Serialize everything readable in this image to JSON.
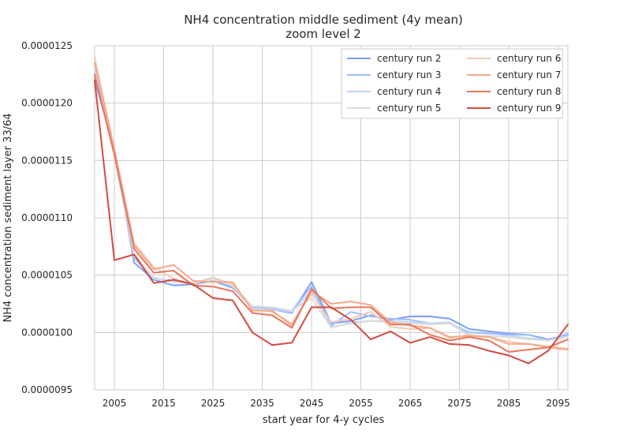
{
  "chart_data": {
    "type": "line",
    "title": "NH4 concentration middle sediment (4y mean)",
    "subtitle": "zoom level 2",
    "xlabel": "start year for 4-y cycles",
    "ylabel": "NH4 concentration sediment layer 33/64",
    "xlim": [
      2001,
      2097
    ],
    "ylim": [
      9.5e-06,
      1.25e-05
    ],
    "xticks": [
      "2005",
      "2015",
      "2025",
      "2035",
      "2045",
      "2055",
      "2065",
      "2075",
      "2085",
      "2095"
    ],
    "yticks": [
      "0.0000095",
      "0.0000100",
      "0.0000105",
      "0.0000110",
      "0.0000115",
      "0.0000120",
      "0.0000125"
    ],
    "grid": true,
    "legend_position": "top-right",
    "x": [
      2001,
      2005,
      2009,
      2013,
      2017,
      2021,
      2025,
      2029,
      2033,
      2037,
      2041,
      2045,
      2049,
      2053,
      2057,
      2061,
      2065,
      2069,
      2073,
      2077,
      2081,
      2085,
      2089,
      2093,
      2097
    ],
    "series": [
      {
        "name": "century run 2",
        "color": "#7b9ff9",
        "values": [
          1.22e-05,
          1.16e-05,
          1.061e-05,
          1.046e-05,
          1.041e-05,
          1.042e-05,
          1.045e-05,
          1.039e-05,
          1.022e-05,
          1.02e-05,
          1.017e-05,
          1.044e-05,
          1.008e-05,
          1.01e-05,
          1.015e-05,
          1.011e-05,
          1.014e-05,
          1.014e-05,
          1.012e-05,
          1.003e-05,
          1.001e-05,
          9.99e-06,
          9.98e-06,
          9.94e-06,
          9.98e-06
        ]
      },
      {
        "name": "century run 3",
        "color": "#9ebeff",
        "values": [
          1.225e-05,
          1.155e-05,
          1.065e-05,
          1.047e-05,
          1.045e-05,
          1.043e-05,
          1.046e-05,
          1.04e-05,
          1.022e-05,
          1.021e-05,
          1.019e-05,
          1.04e-05,
          1.006e-05,
          1.018e-05,
          1.014e-05,
          1.012e-05,
          1.011e-05,
          1.008e-05,
          1.008e-05,
          1e-05,
          9.99e-06,
          9.98e-06,
          9.98e-06,
          9.93e-06,
          9.99e-06
        ]
      },
      {
        "name": "century run 4",
        "color": "#c0d4f5",
        "values": [
          1.23e-05,
          1.155e-05,
          1.066e-05,
          1.048e-05,
          1.044e-05,
          1.043e-05,
          1.048e-05,
          1.04e-05,
          1.021e-05,
          1.02e-05,
          1.018e-05,
          1.036e-05,
          1.005e-05,
          1.008e-05,
          1.01e-05,
          1.01e-05,
          1.009e-05,
          1.008e-05,
          1.009e-05,
          9.98e-06,
          9.96e-06,
          9.97e-06,
          9.95e-06,
          9.93e-06,
          9.97e-06
        ]
      },
      {
        "name": "century run 5",
        "color": "#dddcdc",
        "values": [
          1.235e-05,
          1.16e-05,
          1.068e-05,
          1.047e-05,
          1.044e-05,
          1.043e-05,
          1.046e-05,
          1.041e-05,
          1.023e-05,
          1.022e-05,
          1.019e-05,
          1.03e-05,
          1.004e-05,
          1.009e-05,
          1.01e-05,
          1.009e-05,
          1.008e-05,
          1.007e-05,
          1.008e-05,
          9.97e-06,
          9.97e-06,
          9.96e-06,
          9.94e-06,
          9.93e-06,
          9.96e-06
        ]
      },
      {
        "name": "century run 6",
        "color": "#f2cbb7",
        "values": [
          1.24e-05,
          1.16e-05,
          1.078e-05,
          1.057e-05,
          1.047e-05,
          1.042e-05,
          1.048e-05,
          1.042e-05,
          1.02e-05,
          1.018e-05,
          1.008e-05,
          1.034e-05,
          1.009e-05,
          1.012e-05,
          1.018e-05,
          1.005e-05,
          1.003e-05,
          1.004e-05,
          9.95e-06,
          9.98e-06,
          9.96e-06,
          9.92e-06,
          9.9e-06,
          9.88e-06,
          9.86e-06
        ]
      },
      {
        "name": "century run 7",
        "color": "#f7a889",
        "values": [
          1.235e-05,
          1.16e-05,
          1.076e-05,
          1.055e-05,
          1.059e-05,
          1.045e-05,
          1.044e-05,
          1.044e-05,
          1.019e-05,
          1.019e-05,
          1.006e-05,
          1.036e-05,
          1.025e-05,
          1.027e-05,
          1.024e-05,
          1.009e-05,
          1.006e-05,
          1.004e-05,
          9.96e-06,
          9.97e-06,
          9.96e-06,
          9.9e-06,
          9.9e-06,
          9.87e-06,
          9.85e-06
        ]
      },
      {
        "name": "century run 8",
        "color": "#e8765c",
        "values": [
          1.225e-05,
          1.155e-05,
          1.073e-05,
          1.052e-05,
          1.054e-05,
          1.041e-05,
          1.04e-05,
          1.036e-05,
          1.017e-05,
          1.015e-05,
          1.004e-05,
          1.038e-05,
          1.021e-05,
          1.022e-05,
          1.022e-05,
          1.007e-05,
          1.007e-05,
          9.98e-06,
          9.93e-06,
          9.96e-06,
          9.93e-06,
          9.83e-06,
          9.85e-06,
          9.87e-06,
          9.94e-06
        ]
      },
      {
        "name": "century run 9",
        "color": "#d24b40",
        "values": [
          1.22e-05,
          1.063e-05,
          1.068e-05,
          1.043e-05,
          1.046e-05,
          1.042e-05,
          1.03e-05,
          1.028e-05,
          1e-05,
          9.89e-06,
          9.91e-06,
          1.022e-05,
          1.022e-05,
          1.011e-05,
          9.94e-06,
          1.001e-05,
          9.91e-06,
          9.96e-06,
          9.9e-06,
          9.89e-06,
          9.84e-06,
          9.8e-06,
          9.73e-06,
          9.84e-06,
          1.007e-05
        ]
      }
    ]
  }
}
